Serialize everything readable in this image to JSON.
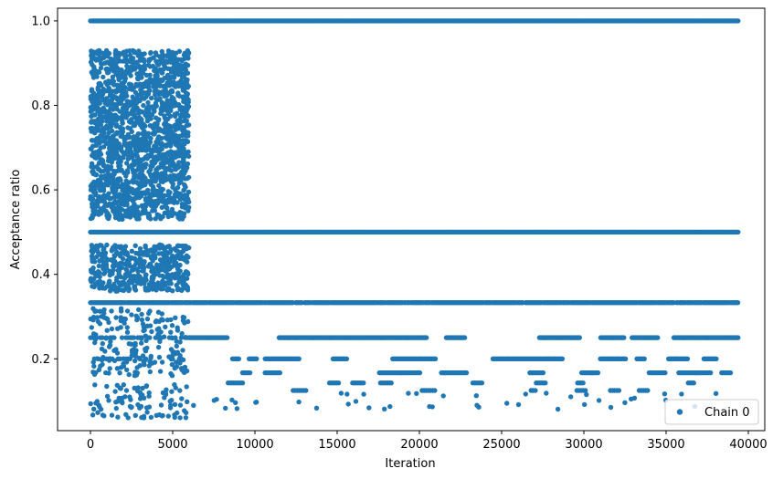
{
  "chart_data": {
    "type": "scatter",
    "xlabel": "Iteration",
    "ylabel": "Acceptance ratio",
    "xlim": [
      -2000,
      41000
    ],
    "ylim": [
      0.03,
      1.03
    ],
    "xticks": [
      0,
      5000,
      10000,
      15000,
      20000,
      25000,
      30000,
      35000,
      40000
    ],
    "xtick_labels": [
      "0",
      "5000",
      "10000",
      "15000",
      "20000",
      "25000",
      "30000",
      "35000",
      "40000"
    ],
    "yticks": [
      0.2,
      0.4,
      0.6,
      0.8,
      1.0
    ],
    "ytick_labels": [
      "0.2",
      "0.4",
      "0.6",
      "0.8",
      "1.0"
    ],
    "grid": false,
    "legend_position": "bottom-right",
    "series": [
      {
        "name": "Chain 0",
        "color": "#1f77b4",
        "marker": "circle",
        "x_range": [
          0,
          39400
        ],
        "bands": [
          {
            "y": 1.0,
            "x_start": 0,
            "x_end": 39400,
            "density": "continuous"
          },
          {
            "y": 0.5,
            "x_start": 0,
            "x_end": 39400,
            "density": "continuous"
          },
          {
            "y": 0.333,
            "x_start": 0,
            "x_end": 39400,
            "density": "mostly-continuous"
          },
          {
            "y": 0.25,
            "x_start": 0,
            "x_end": 39400,
            "density": "intermittent"
          },
          {
            "y": 0.2,
            "x_start": 0,
            "x_end": 39400,
            "density": "intermittent"
          },
          {
            "y": 0.167,
            "x_start": 0,
            "x_end": 39400,
            "density": "sparse"
          },
          {
            "y": 0.143,
            "x_start": 0,
            "x_end": 39400,
            "density": "sparse"
          },
          {
            "y": 0.125,
            "x_start": 0,
            "x_end": 39400,
            "density": "sparse"
          }
        ],
        "early_phase": {
          "x_start": 0,
          "x_end": 6000,
          "y_min": 0.06,
          "y_max": 0.94,
          "description": "dense spread of acceptance ratios"
        }
      }
    ]
  }
}
